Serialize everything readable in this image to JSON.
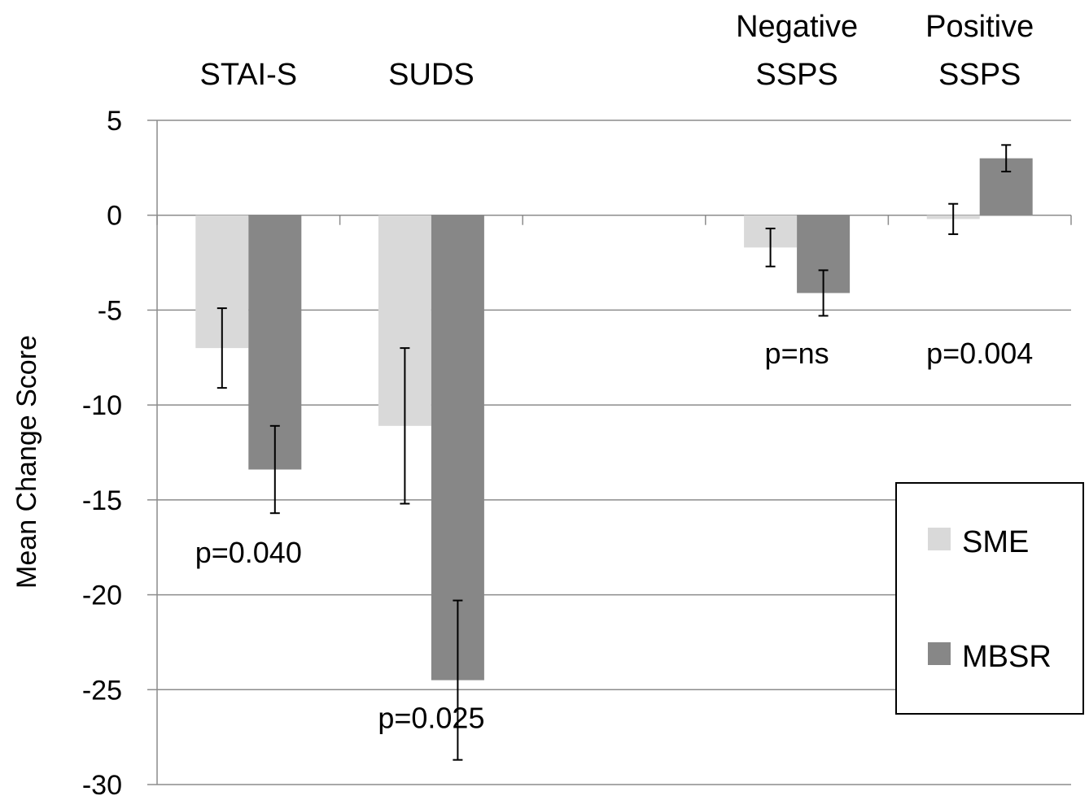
{
  "chart_data": {
    "type": "bar",
    "ylabel": "Mean Change Score",
    "ylim": [
      -30,
      5
    ],
    "yticks": [
      5,
      0,
      -5,
      -10,
      -15,
      -20,
      -25,
      -30
    ],
    "grid": true,
    "legend_position": "right",
    "categories": [
      {
        "label": [
          "STAI-S"
        ]
      },
      {
        "label": [
          "SUDS"
        ]
      },
      {
        "label": []
      },
      {
        "label": [
          "Negative",
          "SSPS"
        ]
      },
      {
        "label": [
          "Positive",
          "SSPS"
        ]
      }
    ],
    "series": [
      {
        "name": "SME",
        "color": "#d9d9d9",
        "values": [
          -7.0,
          -11.1,
          null,
          -1.7,
          -0.2
        ],
        "error": [
          2.1,
          4.1,
          null,
          1.0,
          0.8
        ]
      },
      {
        "name": "MBSR",
        "color": "#878787",
        "values": [
          -13.4,
          -24.5,
          null,
          -4.1,
          3.0
        ],
        "error": [
          2.3,
          4.2,
          null,
          1.2,
          0.7
        ]
      }
    ],
    "annotations": [
      "p=0.040",
      "p=0.025",
      "",
      "p=ns",
      "p=0.004"
    ]
  }
}
